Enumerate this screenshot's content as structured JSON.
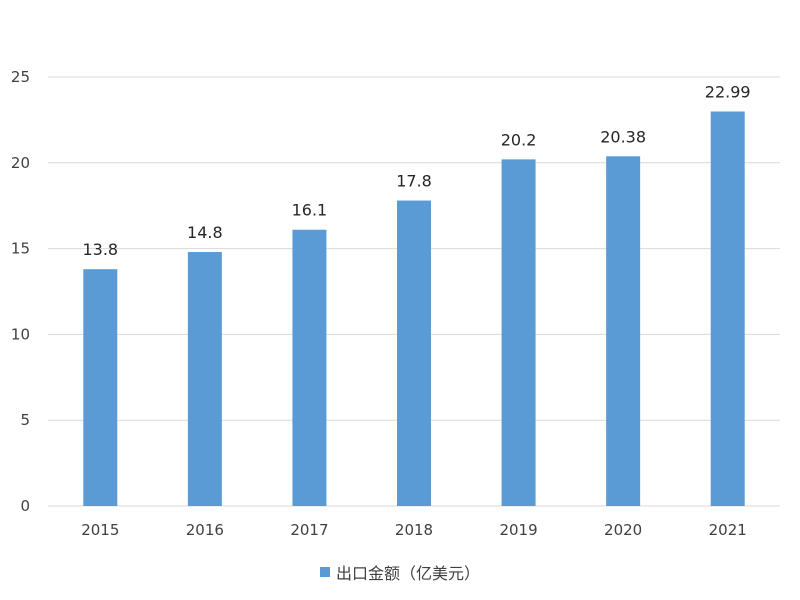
{
  "chart_data": {
    "type": "bar",
    "categories": [
      "2015",
      "2016",
      "2017",
      "2018",
      "2019",
      "2020",
      "2021"
    ],
    "series": [
      {
        "name": "出口金额（亿美元）",
        "values": [
          13.8,
          14.8,
          16.1,
          17.8,
          20.2,
          20.38,
          22.99
        ]
      }
    ],
    "data_labels": [
      "13.8",
      "14.8",
      "16.1",
      "17.8",
      "20.2",
      "20.38",
      "22.99"
    ],
    "title": "",
    "xlabel": "",
    "ylabel": "",
    "ylim": [
      0,
      25
    ],
    "yticks": [
      "0",
      "5",
      "10",
      "15",
      "20",
      "25"
    ],
    "grid": true,
    "legend_position": "bottom",
    "bar_color": "#5b9bd5",
    "grid_color": "#d9d9d9"
  }
}
